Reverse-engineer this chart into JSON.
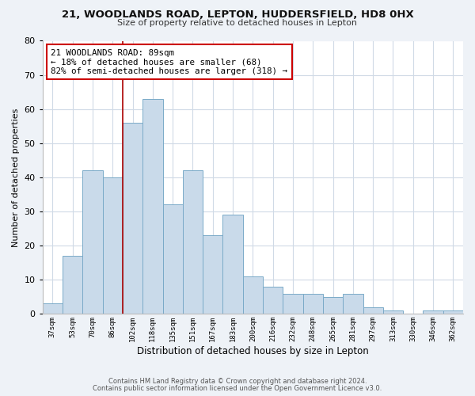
{
  "title": "21, WOODLANDS ROAD, LEPTON, HUDDERSFIELD, HD8 0HX",
  "subtitle": "Size of property relative to detached houses in Lepton",
  "xlabel": "Distribution of detached houses by size in Lepton",
  "ylabel": "Number of detached properties",
  "bar_color": "#c9daea",
  "bar_edge_color": "#7aaac8",
  "categories": [
    "37sqm",
    "53sqm",
    "70sqm",
    "86sqm",
    "102sqm",
    "118sqm",
    "135sqm",
    "151sqm",
    "167sqm",
    "183sqm",
    "200sqm",
    "216sqm",
    "232sqm",
    "248sqm",
    "265sqm",
    "281sqm",
    "297sqm",
    "313sqm",
    "330sqm",
    "346sqm",
    "362sqm"
  ],
  "values": [
    3,
    17,
    42,
    40,
    56,
    63,
    32,
    42,
    23,
    29,
    11,
    8,
    6,
    6,
    5,
    6,
    2,
    1,
    0,
    1,
    1
  ],
  "ylim": [
    0,
    80
  ],
  "yticks": [
    0,
    10,
    20,
    30,
    40,
    50,
    60,
    70,
    80
  ],
  "property_line_x": 3.5,
  "property_line_color": "#aa0000",
  "annotation_text": "21 WOODLANDS ROAD: 89sqm\n← 18% of detached houses are smaller (68)\n82% of semi-detached houses are larger (318) →",
  "annotation_box_color": "#ffffff",
  "annotation_box_edge_color": "#cc0000",
  "footer_line1": "Contains HM Land Registry data © Crown copyright and database right 2024.",
  "footer_line2": "Contains public sector information licensed under the Open Government Licence v3.0.",
  "background_color": "#eef2f7",
  "plot_background_color": "#ffffff",
  "grid_color": "#d0dae6"
}
